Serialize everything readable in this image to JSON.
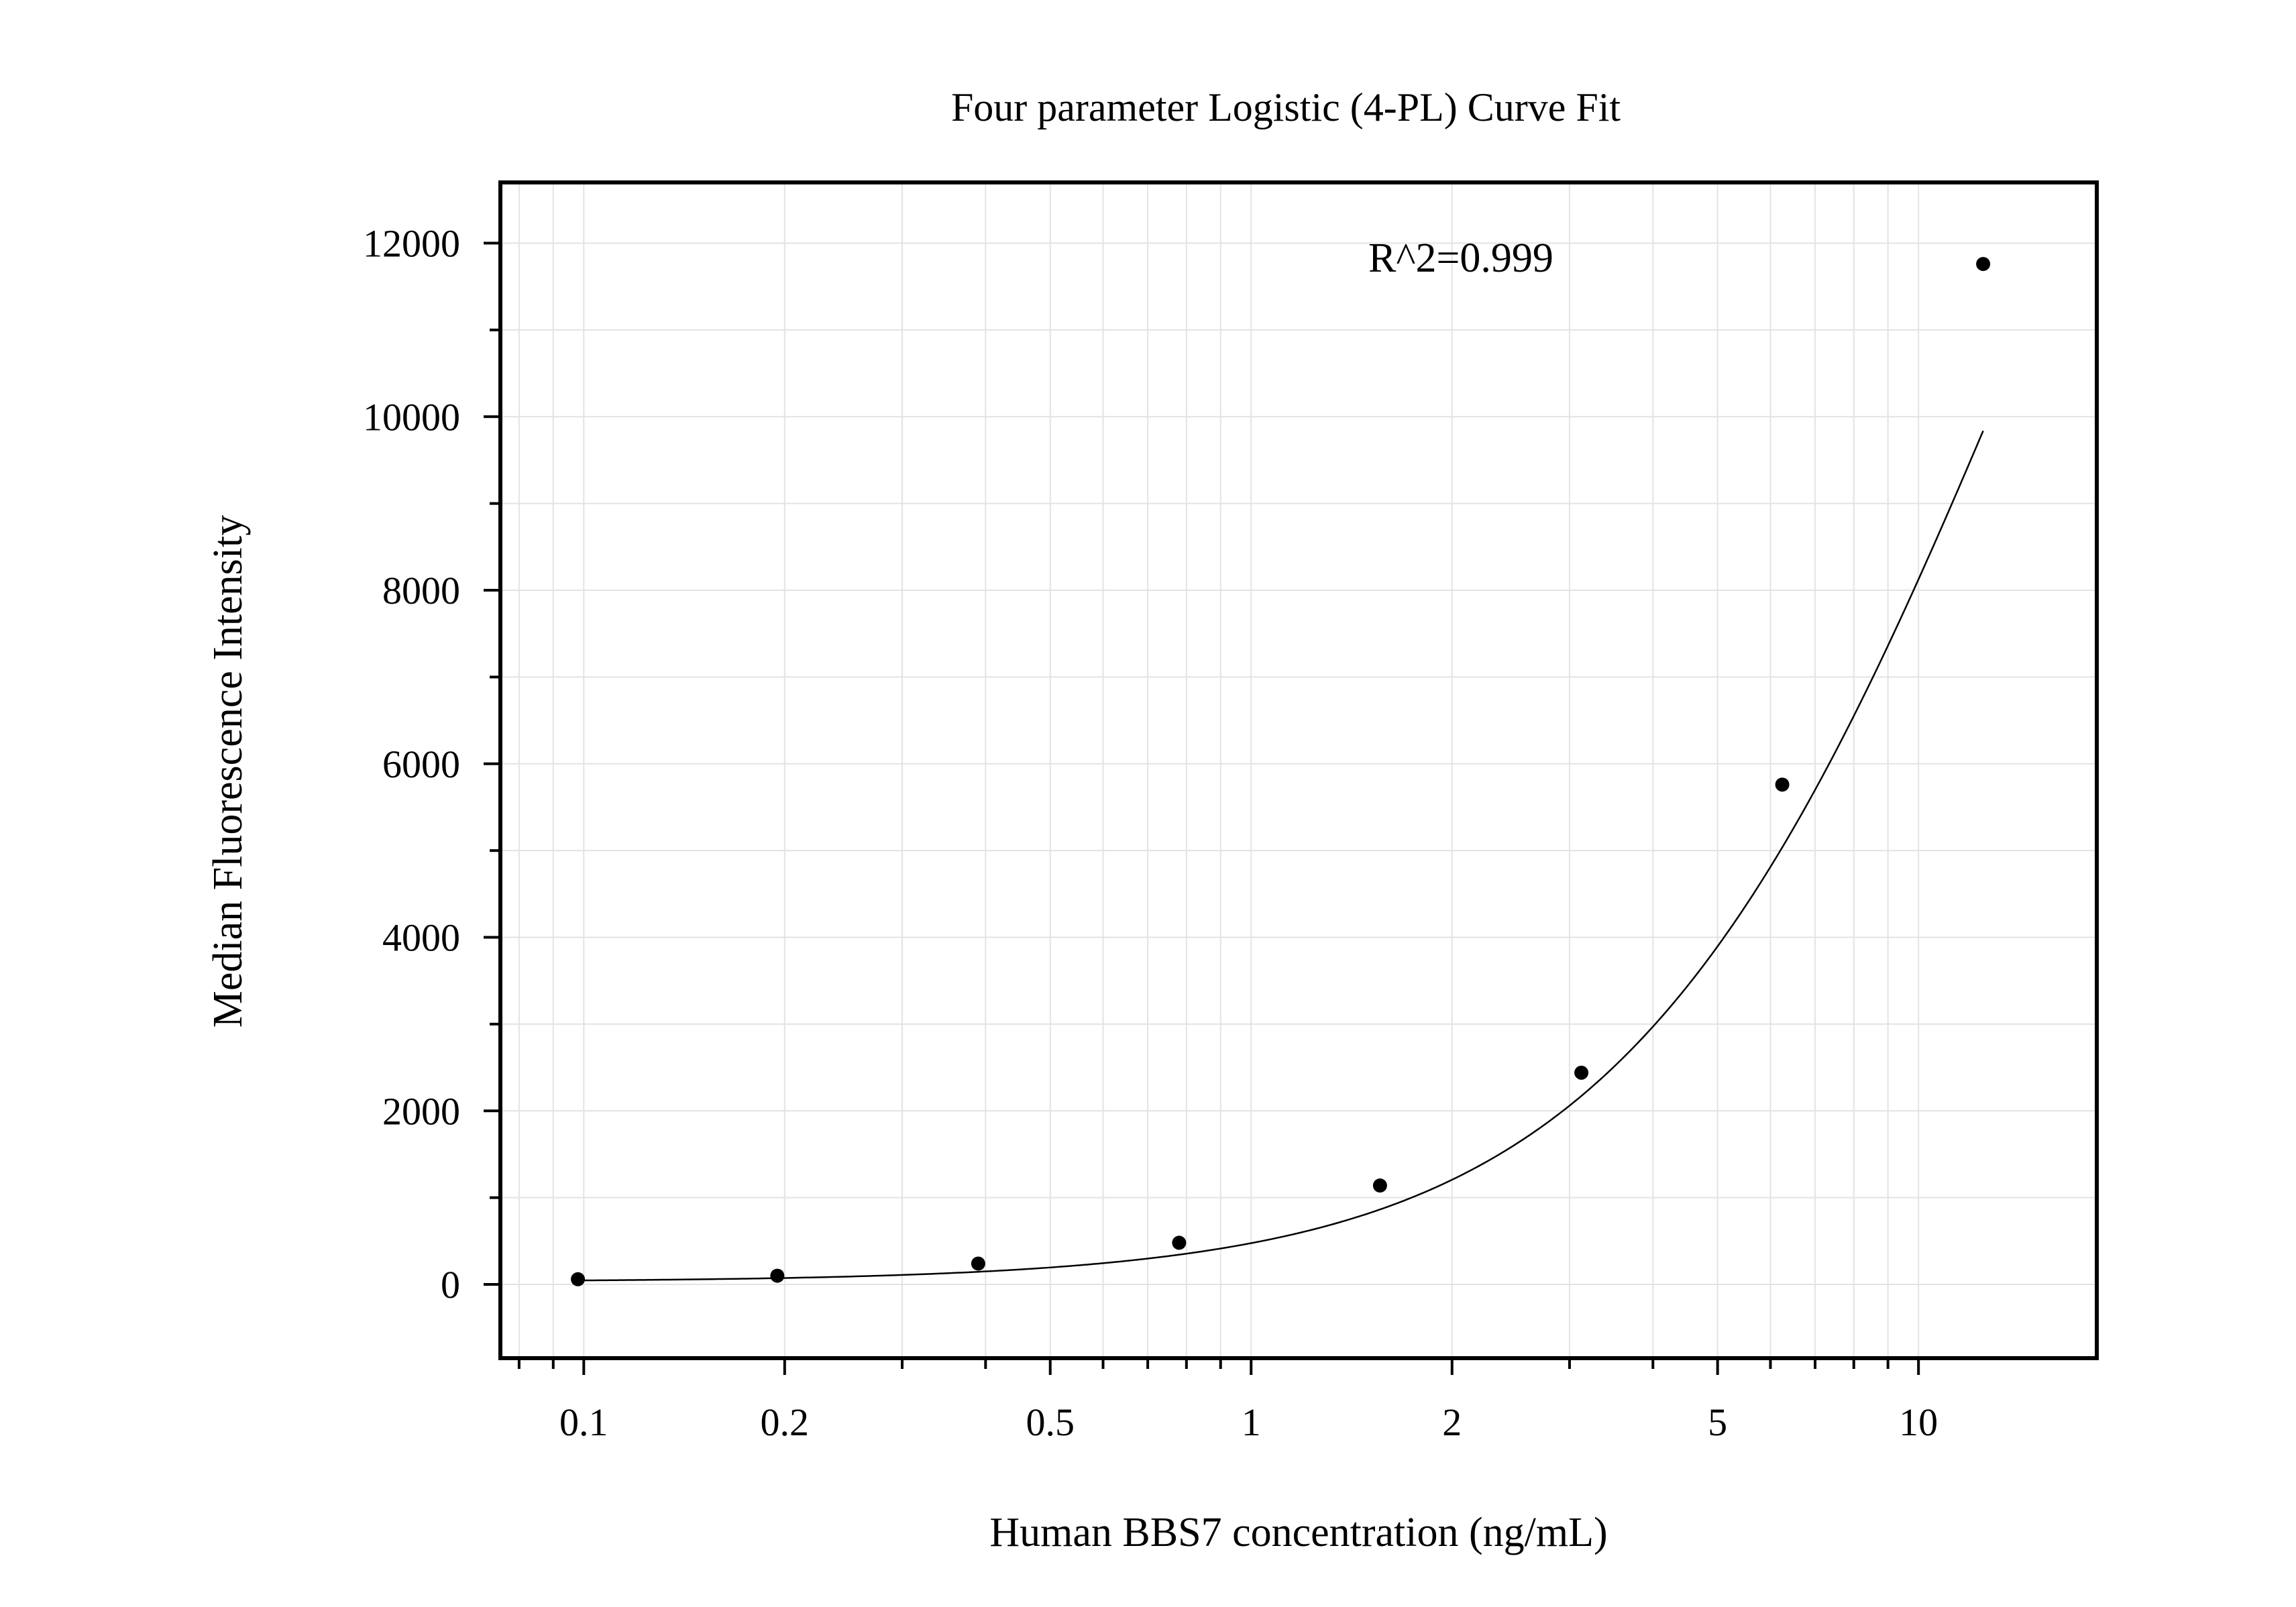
{
  "chart_data": {
    "type": "scatter",
    "title": "Four parameter Logistic (4-PL) Curve Fit",
    "xlabel": "Human BBS7 concentration (ng/mL)",
    "ylabel": "Median Fluorescence Intensity",
    "x_scale": "log",
    "xlim": [
      0.075,
      18.5
    ],
    "ylim": [
      -850,
      12700
    ],
    "x_ticks": [
      {
        "value": 0.1,
        "label": "0.1"
      },
      {
        "value": 0.2,
        "label": "0.2"
      },
      {
        "value": 0.5,
        "label": "0.5"
      },
      {
        "value": 1,
        "label": "1"
      },
      {
        "value": 2,
        "label": "2"
      },
      {
        "value": 5,
        "label": "5"
      },
      {
        "value": 10,
        "label": "10"
      }
    ],
    "y_ticks": [
      {
        "value": 0,
        "label": "0"
      },
      {
        "value": 2000,
        "label": "2000"
      },
      {
        "value": 4000,
        "label": "4000"
      },
      {
        "value": 6000,
        "label": "6000"
      },
      {
        "value": 8000,
        "label": "8000"
      },
      {
        "value": 10000,
        "label": "10000"
      },
      {
        "value": 12000,
        "label": "12000"
      }
    ],
    "grid": true,
    "series": [
      {
        "x": [
          0.098,
          0.195,
          0.39,
          0.78,
          1.56,
          3.125,
          6.25,
          12.5
        ],
        "y": [
          60,
          100,
          240,
          480,
          1140,
          2440,
          5760,
          11760
        ],
        "color": "#000000"
      }
    ],
    "fit_curve": {
      "model": "4-PL",
      "A": 30,
      "B": 1.45,
      "C": 14.5,
      "D": 22000,
      "color": "#000000"
    },
    "annotations": [
      {
        "text": "R^2=0.999"
      }
    ]
  }
}
